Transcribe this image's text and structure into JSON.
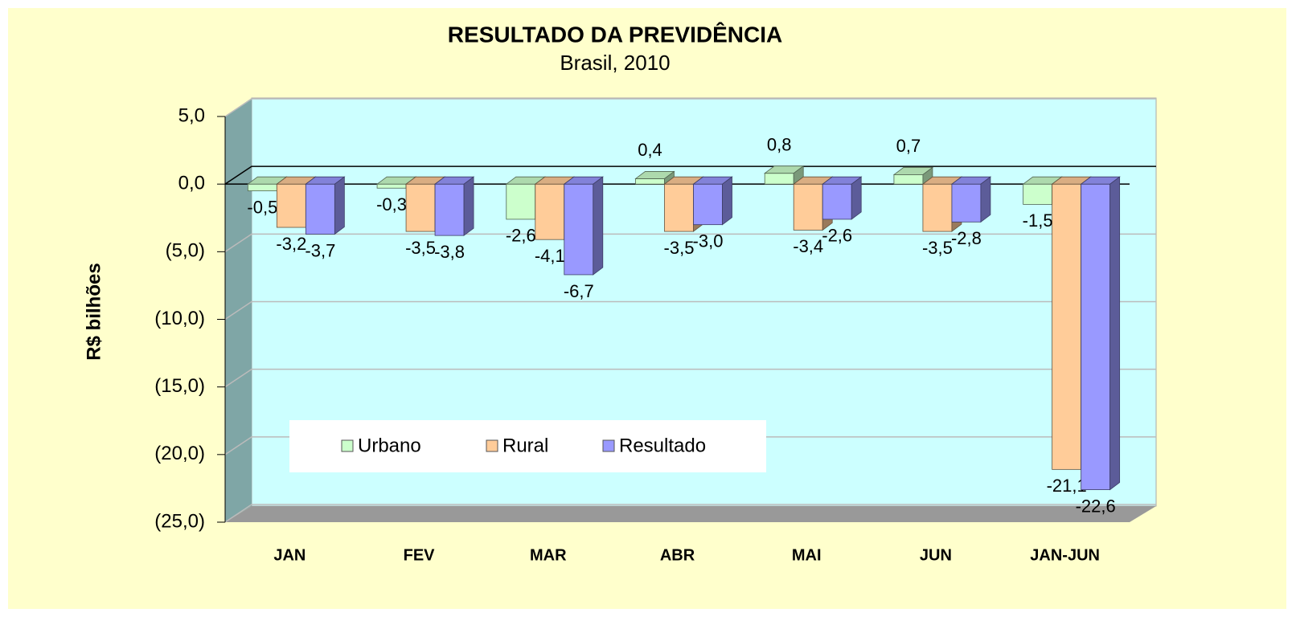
{
  "chart_data": {
    "type": "bar3d",
    "title": "RESULTADO DA PREVIDÊNCIA",
    "subtitle": "Brasil, 2010",
    "y_label": "R$ bilhões",
    "categories": [
      "JAN",
      "FEV",
      "MAR",
      "ABR",
      "MAI",
      "JUN",
      "JAN-JUN"
    ],
    "series": [
      {
        "name": "Urbano",
        "color": "#ccffcc",
        "values": [
          -0.5,
          -0.3,
          -2.6,
          0.4,
          0.8,
          0.7,
          -1.5
        ],
        "value_labels": [
          "-0,5",
          "-0,3",
          "-2,6",
          "0,4",
          "0,8",
          "0,7",
          "-1,5"
        ]
      },
      {
        "name": "Rural",
        "color": "#ffcc99",
        "values": [
          -3.2,
          -3.5,
          -4.1,
          -3.5,
          -3.4,
          -3.5,
          -21.1
        ],
        "value_labels": [
          "-3,2",
          "-3,5",
          "-4,1",
          "-3,5",
          "-3,4",
          "-3,5",
          "-21,1"
        ]
      },
      {
        "name": "Resultado",
        "color": "#9999ff",
        "values": [
          -3.7,
          -3.8,
          -6.7,
          -3.0,
          -2.6,
          -2.8,
          -22.6
        ],
        "value_labels": [
          "-3,7",
          "-3,8",
          "-6,7",
          "-3,0",
          "-2,6",
          "-2,8",
          "-22,6"
        ]
      }
    ],
    "ylim": [
      -25,
      5
    ],
    "yticks": [
      {
        "value": 5,
        "label": "5,0"
      },
      {
        "value": 0,
        "label": "0,0"
      },
      {
        "value": -5,
        "label": "(5,0)"
      },
      {
        "value": -10,
        "label": "(10,0)"
      },
      {
        "value": -15,
        "label": "(15,0)"
      },
      {
        "value": -20,
        "label": "(20,0)"
      },
      {
        "value": -25,
        "label": "(25,0)"
      }
    ],
    "grid": true,
    "legend": "lower left"
  }
}
